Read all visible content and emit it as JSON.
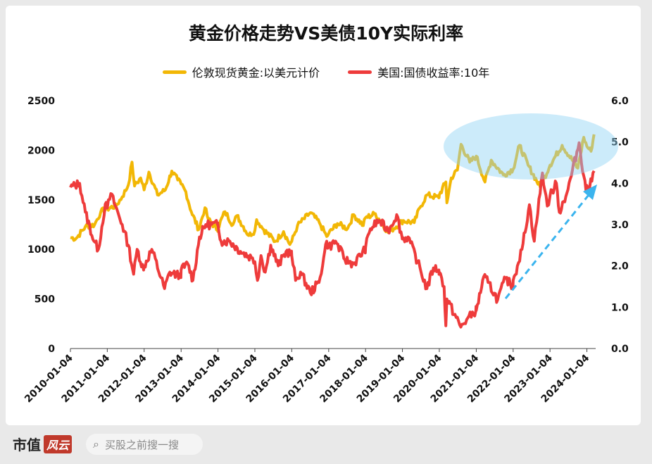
{
  "chart_data": {
    "type": "line",
    "title": "黄金价格走势VS美债10Y实际利率",
    "legend_position": "top",
    "x_categories": [
      "2010-01-04",
      "2011-01-04",
      "2012-01-04",
      "2013-01-04",
      "2014-01-04",
      "2015-01-04",
      "2016-01-04",
      "2017-01-04",
      "2018-01-04",
      "2019-01-04",
      "2020-01-04",
      "2021-01-04",
      "2022-01-04",
      "2023-01-04",
      "2024-01-04"
    ],
    "y_left": {
      "ticks": [
        "0",
        "500",
        "1000",
        "1500",
        "2000",
        "2500"
      ],
      "range": [
        0,
        2500
      ]
    },
    "y_right": {
      "ticks": [
        "0.0",
        "1.0",
        "2.0",
        "3.0",
        "4.0",
        "5.0",
        "6.0"
      ],
      "range": [
        0,
        6
      ]
    },
    "series": [
      {
        "name": "伦敦现货黄金:以美元计价",
        "color": "#f2b705",
        "axis": "left",
        "points": [
          [
            "2010-01-04",
            1120
          ],
          [
            "2010-03-01",
            1110
          ],
          [
            "2010-06-01",
            1230
          ],
          [
            "2010-09-01",
            1250
          ],
          [
            "2010-11-01",
            1380
          ],
          [
            "2011-01-04",
            1410
          ],
          [
            "2011-04-01",
            1440
          ],
          [
            "2011-06-01",
            1530
          ],
          [
            "2011-08-01",
            1650
          ],
          [
            "2011-09-06",
            1880
          ],
          [
            "2011-10-01",
            1640
          ],
          [
            "2011-12-01",
            1720
          ],
          [
            "2012-01-04",
            1600
          ],
          [
            "2012-02-20",
            1780
          ],
          [
            "2012-05-15",
            1550
          ],
          [
            "2012-08-01",
            1600
          ],
          [
            "2012-10-04",
            1790
          ],
          [
            "2012-12-01",
            1700
          ],
          [
            "2013-01-04",
            1660
          ],
          [
            "2013-02-20",
            1580
          ],
          [
            "2013-04-15",
            1380
          ],
          [
            "2013-06-28",
            1200
          ],
          [
            "2013-08-28",
            1420
          ],
          [
            "2013-10-01",
            1300
          ],
          [
            "2013-12-31",
            1200
          ],
          [
            "2014-01-04",
            1220
          ],
          [
            "2014-03-14",
            1380
          ],
          [
            "2014-06-01",
            1250
          ],
          [
            "2014-07-10",
            1340
          ],
          [
            "2014-11-05",
            1140
          ],
          [
            "2015-01-04",
            1190
          ],
          [
            "2015-01-22",
            1300
          ],
          [
            "2015-04-01",
            1200
          ],
          [
            "2015-07-24",
            1080
          ],
          [
            "2015-10-15",
            1180
          ],
          [
            "2015-12-17",
            1050
          ],
          [
            "2016-01-04",
            1080
          ],
          [
            "2016-03-01",
            1240
          ],
          [
            "2016-07-06",
            1370
          ],
          [
            "2016-10-04",
            1270
          ],
          [
            "2016-12-15",
            1130
          ],
          [
            "2017-01-04",
            1160
          ],
          [
            "2017-04-01",
            1260
          ],
          [
            "2017-07-10",
            1210
          ],
          [
            "2017-09-08",
            1350
          ],
          [
            "2017-12-12",
            1240
          ],
          [
            "2018-01-04",
            1320
          ],
          [
            "2018-04-11",
            1360
          ],
          [
            "2018-08-16",
            1170
          ],
          [
            "2018-12-31",
            1280
          ],
          [
            "2019-01-04",
            1290
          ],
          [
            "2019-05-01",
            1270
          ],
          [
            "2019-06-25",
            1420
          ],
          [
            "2019-09-04",
            1550
          ],
          [
            "2019-12-31",
            1520
          ],
          [
            "2020-01-04",
            1550
          ],
          [
            "2020-03-09",
            1680
          ],
          [
            "2020-03-19",
            1470
          ],
          [
            "2020-05-01",
            1720
          ],
          [
            "2020-07-01",
            1800
          ],
          [
            "2020-08-06",
            2060
          ],
          [
            "2020-11-01",
            1880
          ],
          [
            "2021-01-04",
            1940
          ],
          [
            "2021-03-31",
            1680
          ],
          [
            "2021-06-01",
            1900
          ],
          [
            "2021-09-30",
            1750
          ],
          [
            "2022-01-04",
            1810
          ],
          [
            "2022-03-08",
            2050
          ],
          [
            "2022-06-01",
            1850
          ],
          [
            "2022-09-28",
            1630
          ],
          [
            "2023-01-04",
            1850
          ],
          [
            "2023-05-04",
            2050
          ],
          [
            "2023-10-06",
            1820
          ],
          [
            "2023-12-04",
            2130
          ],
          [
            "2024-01-04",
            2040
          ],
          [
            "2024-02-14",
            1990
          ],
          [
            "2024-03-15",
            2160
          ]
        ]
      },
      {
        "name": "美国:国债收益率:10年",
        "color": "#ee3b3b",
        "axis": "right",
        "points": [
          [
            "2010-01-04",
            3.9
          ],
          [
            "2010-04-05",
            4.0
          ],
          [
            "2010-06-01",
            3.3
          ],
          [
            "2010-08-25",
            2.6
          ],
          [
            "2010-10-08",
            2.4
          ],
          [
            "2010-12-15",
            3.5
          ],
          [
            "2011-01-04",
            3.4
          ],
          [
            "2011-02-08",
            3.75
          ],
          [
            "2011-06-01",
            3.0
          ],
          [
            "2011-08-01",
            2.5
          ],
          [
            "2011-09-22",
            1.8
          ],
          [
            "2011-10-27",
            2.4
          ],
          [
            "2011-12-30",
            1.9
          ],
          [
            "2012-01-04",
            2.0
          ],
          [
            "2012-03-20",
            2.4
          ],
          [
            "2012-07-24",
            1.45
          ],
          [
            "2012-09-14",
            1.85
          ],
          [
            "2012-12-31",
            1.75
          ],
          [
            "2013-01-04",
            1.9
          ],
          [
            "2013-03-11",
            2.05
          ],
          [
            "2013-05-01",
            1.65
          ],
          [
            "2013-07-05",
            2.7
          ],
          [
            "2013-09-05",
            3.0
          ],
          [
            "2013-12-31",
            3.0
          ],
          [
            "2014-01-04",
            3.0
          ],
          [
            "2014-02-03",
            2.6
          ],
          [
            "2014-05-01",
            2.6
          ],
          [
            "2014-08-15",
            2.35
          ],
          [
            "2014-12-01",
            2.2
          ],
          [
            "2015-01-04",
            2.1
          ],
          [
            "2015-01-30",
            1.65
          ],
          [
            "2015-03-06",
            2.25
          ],
          [
            "2015-04-17",
            1.85
          ],
          [
            "2015-06-10",
            2.5
          ],
          [
            "2015-08-24",
            2.0
          ],
          [
            "2015-11-09",
            2.35
          ],
          [
            "2015-12-31",
            2.3
          ],
          [
            "2016-01-04",
            2.25
          ],
          [
            "2016-02-11",
            1.65
          ],
          [
            "2016-04-01",
            1.85
          ],
          [
            "2016-07-06",
            1.35
          ],
          [
            "2016-09-30",
            1.6
          ],
          [
            "2016-11-15",
            2.2
          ],
          [
            "2016-12-15",
            2.6
          ],
          [
            "2017-01-04",
            2.45
          ],
          [
            "2017-03-13",
            2.6
          ],
          [
            "2017-06-14",
            2.15
          ],
          [
            "2017-09-08",
            2.05
          ],
          [
            "2017-12-29",
            2.4
          ],
          [
            "2018-01-04",
            2.45
          ],
          [
            "2018-02-21",
            2.9
          ],
          [
            "2018-05-17",
            3.1
          ],
          [
            "2018-08-15",
            2.85
          ],
          [
            "2018-11-08",
            3.24
          ],
          [
            "2018-12-31",
            2.7
          ],
          [
            "2019-01-04",
            2.65
          ],
          [
            "2019-03-01",
            2.7
          ],
          [
            "2019-06-03",
            2.1
          ],
          [
            "2019-09-03",
            1.45
          ],
          [
            "2019-11-07",
            1.95
          ],
          [
            "2019-12-31",
            1.9
          ],
          [
            "2020-01-04",
            1.85
          ],
          [
            "2020-02-20",
            1.5
          ],
          [
            "2020-03-09",
            0.55
          ],
          [
            "2020-03-19",
            1.2
          ],
          [
            "2020-08-04",
            0.52
          ],
          [
            "2020-10-01",
            0.7
          ],
          [
            "2020-12-31",
            0.92
          ],
          [
            "2021-01-04",
            0.92
          ],
          [
            "2021-03-19",
            1.74
          ],
          [
            "2021-05-01",
            1.6
          ],
          [
            "2021-08-04",
            1.18
          ],
          [
            "2021-10-21",
            1.7
          ],
          [
            "2021-12-31",
            1.5
          ],
          [
            "2022-01-04",
            1.65
          ],
          [
            "2022-02-15",
            2.0
          ],
          [
            "2022-04-01",
            2.4
          ],
          [
            "2022-06-14",
            3.48
          ],
          [
            "2022-08-01",
            2.6
          ],
          [
            "2022-10-21",
            4.25
          ],
          [
            "2022-12-08",
            3.45
          ],
          [
            "2023-01-04",
            3.7
          ],
          [
            "2023-03-08",
            4.0
          ],
          [
            "2023-04-06",
            3.3
          ],
          [
            "2023-07-01",
            3.85
          ],
          [
            "2023-10-19",
            4.98
          ],
          [
            "2023-12-27",
            3.8
          ],
          [
            "2024-01-04",
            3.95
          ],
          [
            "2024-02-01",
            3.9
          ],
          [
            "2024-03-15",
            4.3
          ]
        ]
      }
    ]
  },
  "footer": {
    "brand_text": "市值",
    "brand_mark": "风云",
    "search_placeholder": "买股之前搜一搜"
  }
}
